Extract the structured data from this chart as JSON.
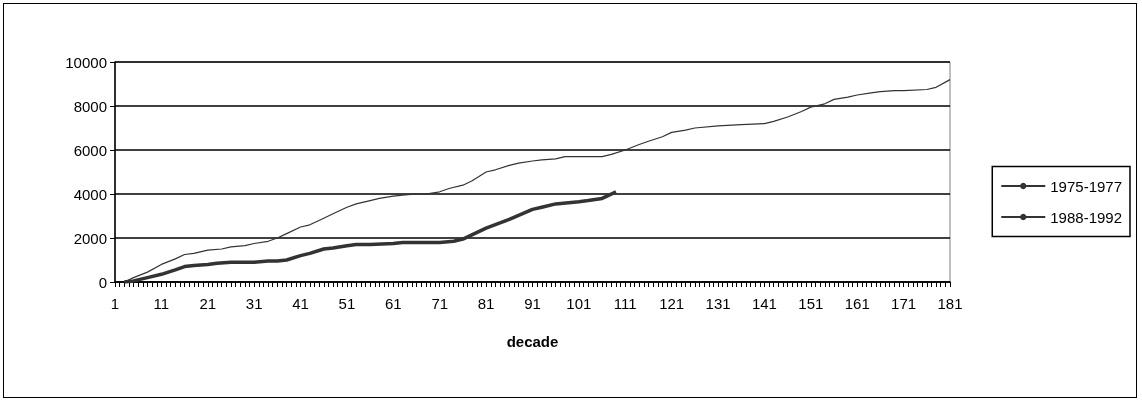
{
  "chart_data": {
    "type": "line",
    "xlabel": "decade",
    "series": [
      {
        "name": "1975-1977",
        "color": "#333333",
        "x": [
          3,
          5,
          8,
          11,
          14,
          16,
          18,
          21,
          23,
          26,
          31,
          34,
          36,
          38,
          41,
          43,
          46,
          48,
          51,
          53,
          56,
          61,
          63,
          66,
          71,
          74,
          76,
          81,
          86,
          91,
          93,
          96,
          101,
          103,
          106,
          109
        ],
        "values": [
          0,
          50,
          200,
          350,
          550,
          700,
          750,
          800,
          850,
          900,
          900,
          950,
          950,
          1000,
          1200,
          1300,
          1500,
          1550,
          1650,
          1700,
          1700,
          1750,
          1800,
          1800,
          1800,
          1850,
          1950,
          2450,
          2850,
          3300,
          3400,
          3550,
          3650,
          3700,
          3800,
          4100
        ]
      },
      {
        "name": "1988-1992",
        "color": "#333333",
        "x": [
          3,
          5,
          8,
          11,
          14,
          16,
          18,
          21,
          24,
          26,
          29,
          31,
          34,
          36,
          38,
          41,
          43,
          46,
          48,
          51,
          53,
          56,
          58,
          61,
          63,
          66,
          68,
          71,
          73,
          76,
          78,
          81,
          83,
          86,
          88,
          91,
          93,
          96,
          98,
          101,
          106,
          108,
          111,
          114,
          116,
          119,
          121,
          124,
          126,
          131,
          136,
          141,
          143,
          146,
          149,
          151,
          154,
          156,
          159,
          161,
          164,
          166,
          169,
          171,
          176,
          178,
          181
        ],
        "values": [
          0,
          200,
          450,
          800,
          1050,
          1250,
          1300,
          1450,
          1500,
          1600,
          1650,
          1750,
          1850,
          2000,
          2200,
          2500,
          2600,
          2900,
          3100,
          3400,
          3550,
          3700,
          3800,
          3900,
          3950,
          4000,
          4000,
          4100,
          4250,
          4400,
          4600,
          5000,
          5100,
          5300,
          5400,
          5500,
          5550,
          5600,
          5700,
          5700,
          5700,
          5800,
          6000,
          6250,
          6400,
          6600,
          6800,
          6900,
          7000,
          7100,
          7150,
          7200,
          7300,
          7500,
          7750,
          7950,
          8100,
          8300,
          8400,
          8500,
          8600,
          8650,
          8700,
          8700,
          8750,
          8850,
          9200
        ]
      }
    ],
    "xlim": [
      1,
      181
    ],
    "xticks": [
      1,
      11,
      21,
      31,
      41,
      51,
      61,
      71,
      81,
      91,
      101,
      111,
      121,
      131,
      141,
      151,
      161,
      171,
      181
    ],
    "ylim": [
      0,
      10000
    ],
    "yticks": [
      0,
      2000,
      4000,
      6000,
      8000,
      10000
    ],
    "grid": "y",
    "legend": "right",
    "marker": "none",
    "line_style": "solid"
  }
}
